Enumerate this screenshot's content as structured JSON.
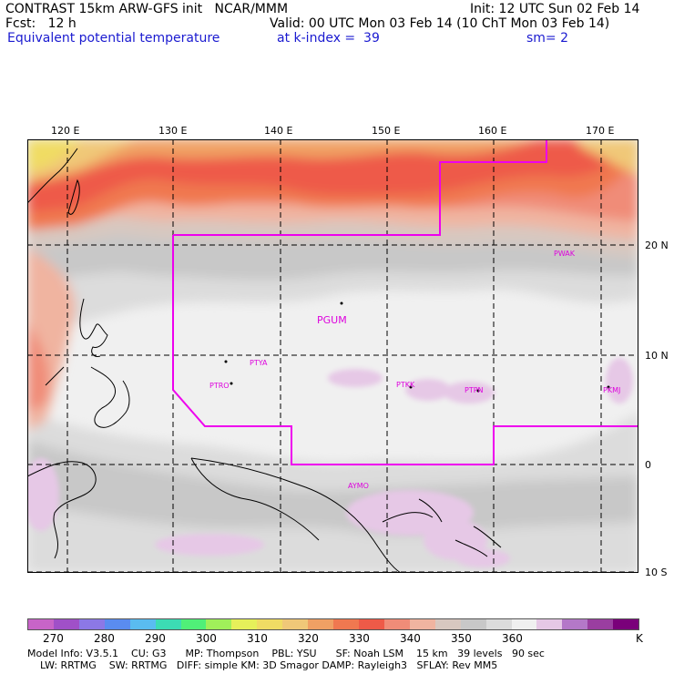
{
  "header": {
    "line1_left": "CONTRAST 15km ARW-GFS init   NCAR/MMM",
    "line1_right": "Init: 12 UTC Sun 02 Feb 14",
    "line2_left": "Fcst:   12 h",
    "line2_right": "Valid: 00 UTC Mon 03 Feb 14 (10 ChT Mon 03 Feb 14)",
    "line3_left": "Equivalent potential temperature",
    "line3_mid": "at k-index =  39",
    "line3_right": "sm= 2"
  },
  "axes": {
    "lon_labels": [
      "120 E",
      "130 E",
      "140 E",
      "150 E",
      "160 E",
      "170 E"
    ],
    "lat_labels": [
      "20 N",
      "10 N",
      "0",
      "10 S"
    ]
  },
  "stations": [
    "PGUM",
    "PTYA",
    "PTRO",
    "PTKK",
    "PTPN",
    "PKMJ",
    "PWAK",
    "AYMO"
  ],
  "colors": {
    "boundary": "#ee00ee",
    "station": "#dd00dd"
  },
  "colorbar": {
    "colors": [
      "#c864c8",
      "#a050c8",
      "#8c78e6",
      "#5a8cf0",
      "#5abcf0",
      "#3cdcb4",
      "#50f078",
      "#a0f05a",
      "#e6f05a",
      "#f0dc64",
      "#f0c878",
      "#f0a064",
      "#f07850",
      "#ee5a48",
      "#f08c78",
      "#f0b4a0",
      "#d8c8c0",
      "#c8c8c8",
      "#dcdcdc",
      "#f0f0f0",
      "#e6c8e6",
      "#b478c8",
      "#9a3ea0",
      "#7a007a"
    ],
    "labels": [
      "270",
      "280",
      "290",
      "300",
      "310",
      "320",
      "330",
      "340",
      "350",
      "360",
      "K"
    ]
  },
  "model_info": {
    "line1": "Model Info: V3.5.1    CU: G3      MP: Thompson    PBL: YSU      SF: Noah LSM    15 km   39 levels   90 sec",
    "line2": "    LW: RRTMG    SW: RRTMG   DIFF: simple KM: 3D Smagor DAMP: Rayleigh3   SFLAY: Rev MM5"
  }
}
